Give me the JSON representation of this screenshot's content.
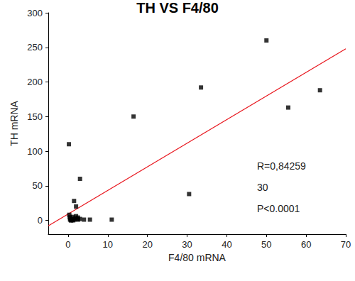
{
  "chart_data": {
    "type": "scatter",
    "title": "TH VS F4/80",
    "x_label": "F4/80 mRNA",
    "y_label": "TH mRNA",
    "x": [
      0.2,
      0.3,
      0.5,
      0.8,
      1,
      1.2,
      1.5,
      1.5,
      2,
      2,
      2.2,
      2.5,
      3,
      3,
      4,
      5.5,
      11,
      16.5,
      30.5,
      33.5,
      50,
      55.5,
      63.5,
      0.5,
      0.7,
      1,
      1.3,
      1.8,
      2.5,
      0.4
    ],
    "values": [
      110,
      8,
      3,
      0,
      2,
      5,
      1,
      28,
      6,
      20,
      2,
      4,
      60,
      2,
      1,
      1,
      1,
      150,
      38,
      192,
      260,
      163,
      188,
      1,
      0,
      1,
      0,
      3,
      1,
      5
    ],
    "color": "#000000",
    "marker": "square",
    "fit_line": {
      "x": [
        -5,
        70
      ],
      "values": [
        -8,
        248
      ],
      "color": "#e8141c",
      "line_style": "solid"
    },
    "annotations": [
      "R=0,84259",
      "30",
      "P<0.0001"
    ],
    "xlim": [
      -5,
      70
    ],
    "xticks": [
      0,
      10,
      20,
      30,
      40,
      50,
      60,
      70
    ],
    "ylim": [
      -20,
      300
    ],
    "yticks": [
      0,
      50,
      100,
      150,
      200,
      250,
      300
    ],
    "grid": false
  }
}
